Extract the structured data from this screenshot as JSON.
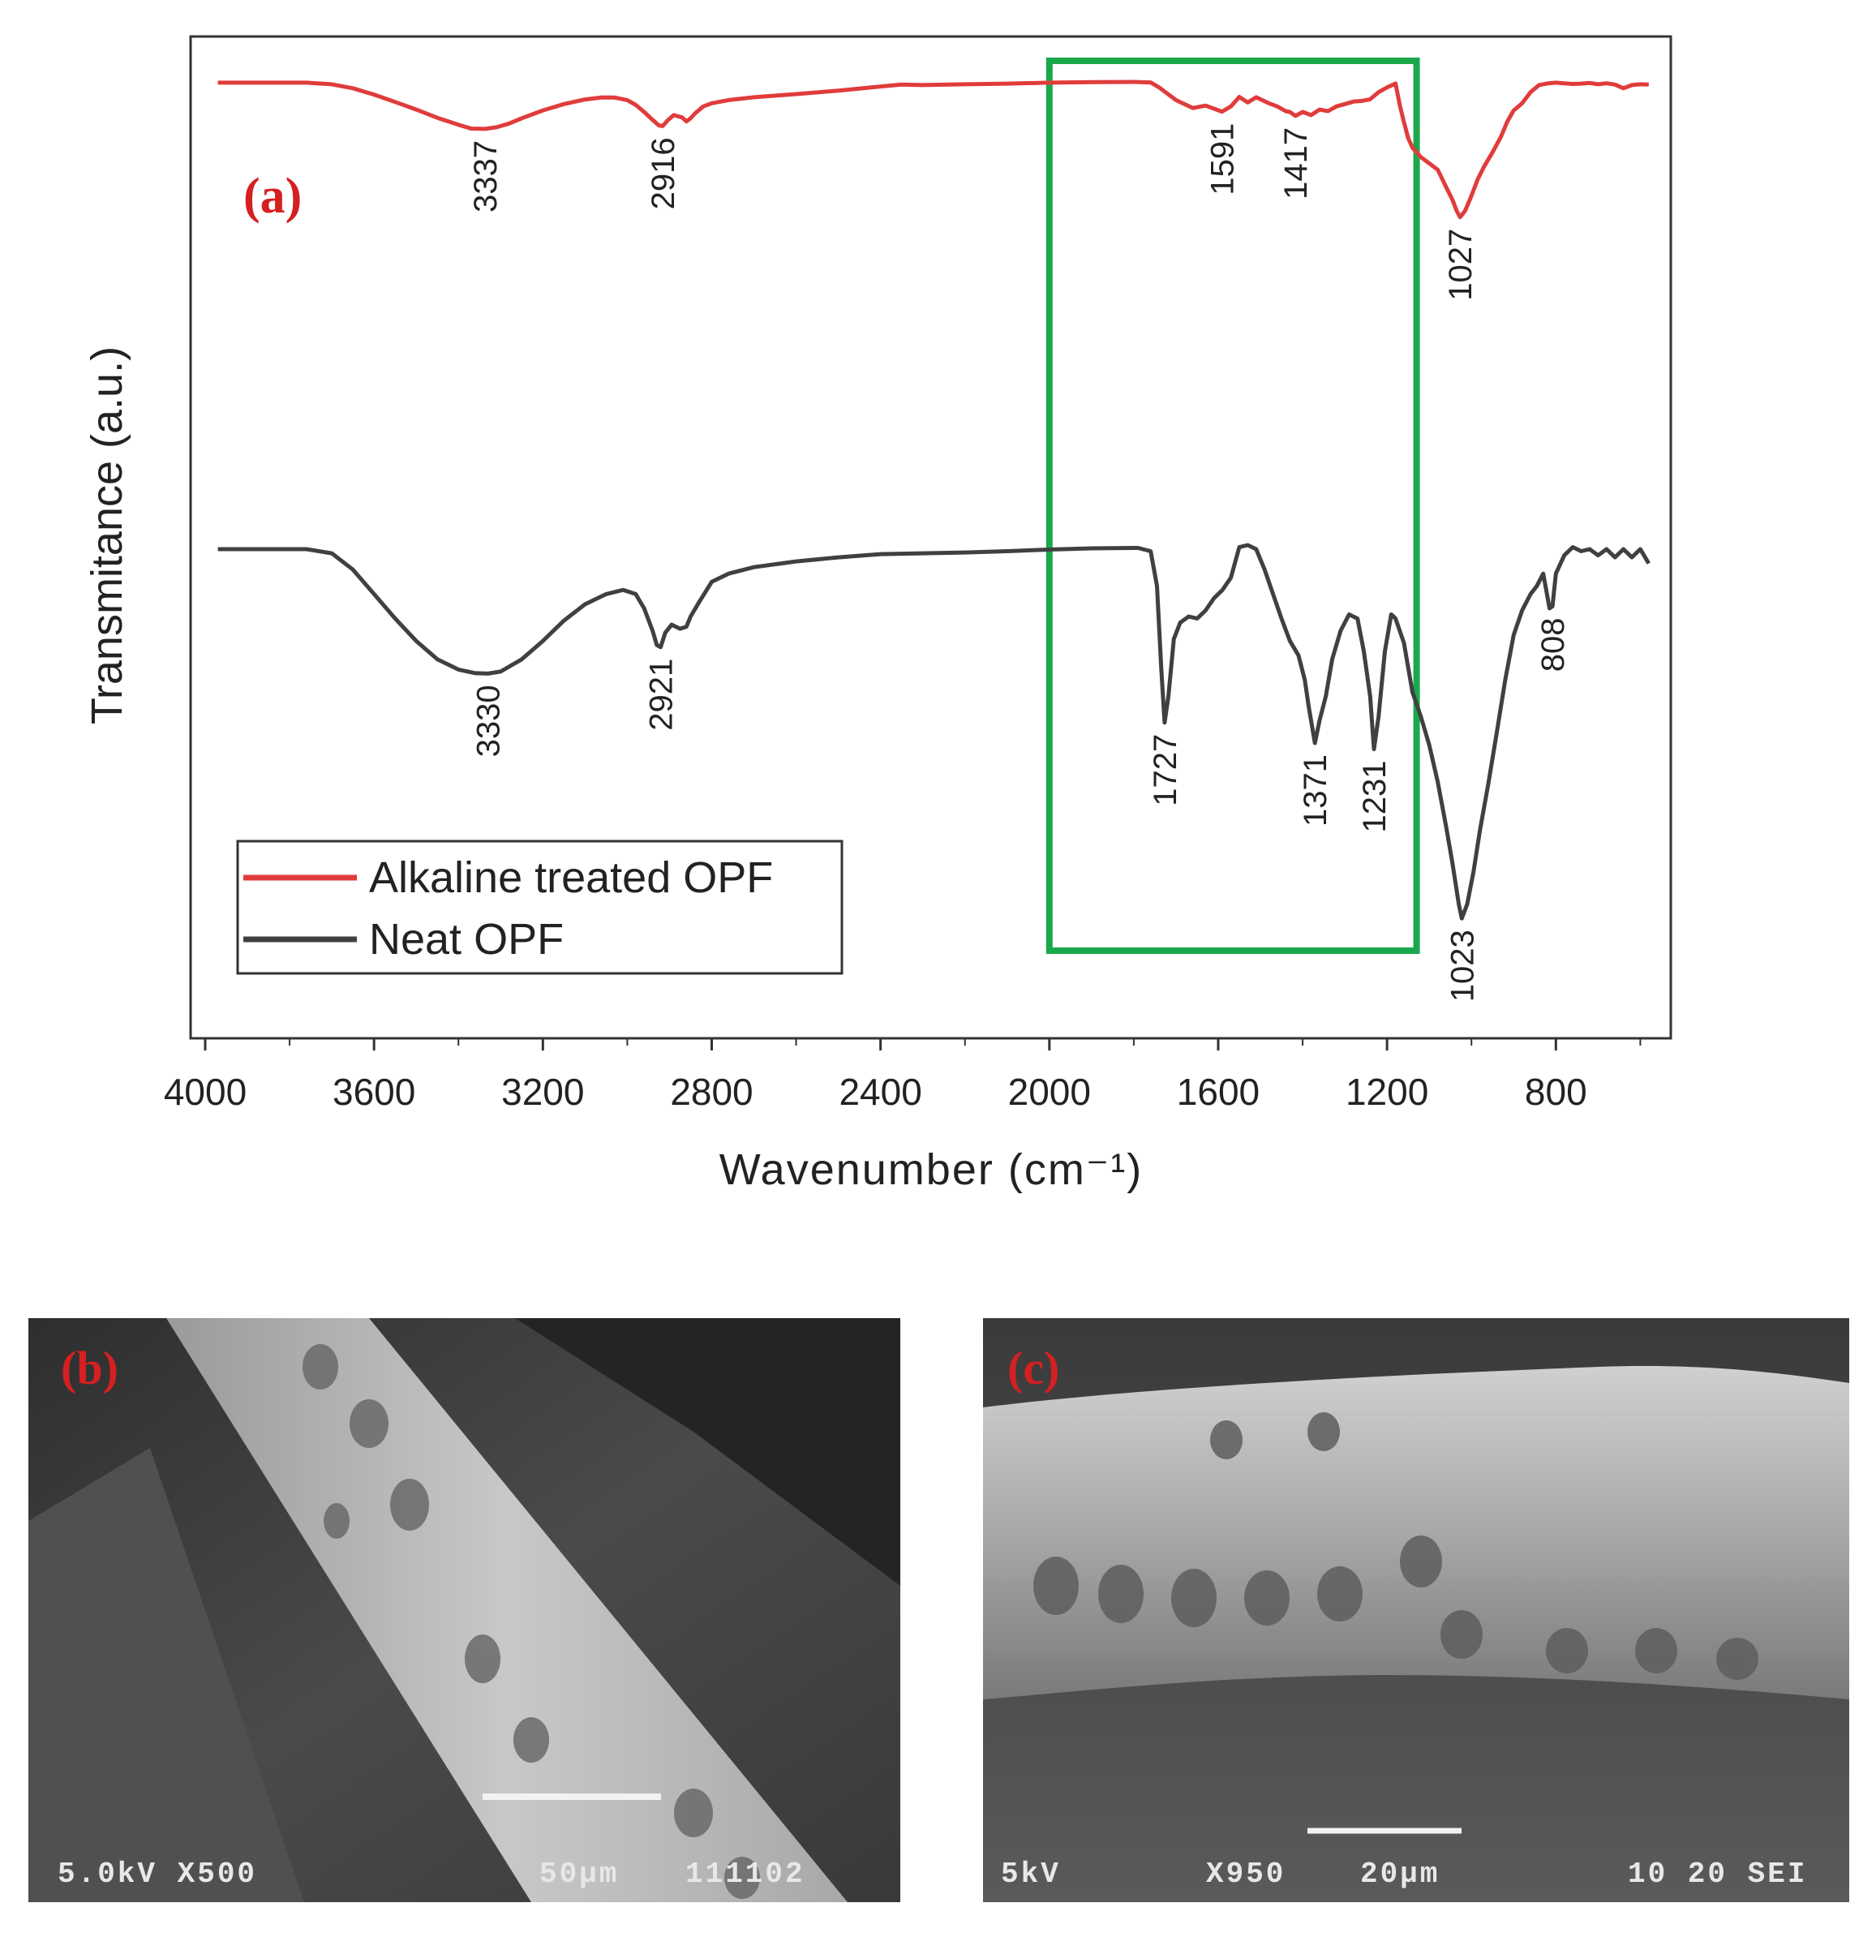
{
  "chart_data": {
    "type": "line",
    "panel_label": "(a)",
    "xlabel": "Wavenumber (cm⁻¹)",
    "ylabel": "Transmitance (a.u.)",
    "xlim": [
      4000,
      570
    ],
    "x_ticks": [
      4000,
      3600,
      3200,
      2800,
      2400,
      2000,
      1600,
      1200,
      800
    ],
    "x_tick_labels": [
      "4000",
      "3600",
      "3200",
      "2800",
      "2400",
      "2000",
      "1600",
      "1200",
      "800"
    ],
    "legend": {
      "placement": "bottom-left"
    },
    "series": [
      {
        "name": "Alkaline treated OPF",
        "color": "#e03c3c",
        "x": [
          3970,
          3760,
          3700,
          3650,
          3600,
          3550,
          3500,
          3450,
          3400,
          3370,
          3337,
          3310,
          3280,
          3250,
          3200,
          3150,
          3100,
          3060,
          3030,
          3000,
          2980,
          2960,
          2940,
          2925,
          2916,
          2905,
          2890,
          2870,
          2860,
          2850,
          2840,
          2820,
          2800,
          2760,
          2700,
          2600,
          2500,
          2400,
          2350,
          2300,
          2200,
          2100,
          2000,
          1900,
          1800,
          1760,
          1740,
          1700,
          1660,
          1630,
          1591,
          1570,
          1550,
          1530,
          1510,
          1480,
          1460,
          1440,
          1430,
          1417,
          1400,
          1380,
          1360,
          1340,
          1320,
          1300,
          1280,
          1260,
          1240,
          1220,
          1200,
          1180,
          1170,
          1160,
          1150,
          1140,
          1120,
          1100,
          1080,
          1060,
          1045,
          1035,
          1027,
          1015,
          1000,
          985,
          970,
          950,
          930,
          915,
          900,
          880,
          860,
          840,
          820,
          800,
          780,
          760,
          740,
          720,
          700,
          680,
          660,
          640,
          620,
          600,
          580
        ],
        "y": [
          99.0,
          99.0,
          98.0,
          95.5,
          91.5,
          86.8,
          82.0,
          76.8,
          72.4,
          70.0,
          69.8,
          70.8,
          73.2,
          76.5,
          81.5,
          85.5,
          88.4,
          89.7,
          89.6,
          88.0,
          85.0,
          80.5,
          75.5,
          72.0,
          71.6,
          75.0,
          78.5,
          77.0,
          74.5,
          76.5,
          79.5,
          84.0,
          86.0,
          88.0,
          89.8,
          91.8,
          94.0,
          96.6,
          97.8,
          97.5,
          98.0,
          98.4,
          99.0,
          99.4,
          99.5,
          99.2,
          96.0,
          88.0,
          83.0,
          84.5,
          80.7,
          84.0,
          90.0,
          86.5,
          89.8,
          86.0,
          84.0,
          81.0,
          80.5,
          78.0,
          80.5,
          78.5,
          82.0,
          81.0,
          84.0,
          85.5,
          87.0,
          87.5,
          88.5,
          93.0,
          96.0,
          98.5,
          85.0,
          74.0,
          64.0,
          58.0,
          52.0,
          48.0,
          44.0,
          33.0,
          25.0,
          18.0,
          14.0,
          18.0,
          27.5,
          38.0,
          46.0,
          55.0,
          65.0,
          74.5,
          81.5,
          86.0,
          93.0,
          97.5,
          98.5,
          99.0,
          98.6,
          98.2,
          98.4,
          98.8,
          98.0,
          98.6,
          97.8,
          95.5,
          97.5,
          98.0,
          97.8
        ]
      },
      {
        "name": "Neat OPF",
        "color": "#404040",
        "x": [
          3970,
          3760,
          3700,
          3650,
          3600,
          3550,
          3500,
          3450,
          3400,
          3360,
          3330,
          3300,
          3250,
          3200,
          3150,
          3100,
          3050,
          3010,
          2980,
          2960,
          2940,
          2930,
          2921,
          2910,
          2895,
          2875,
          2860,
          2850,
          2830,
          2800,
          2760,
          2700,
          2600,
          2500,
          2400,
          2300,
          2200,
          2100,
          2000,
          1900,
          1790,
          1760,
          1745,
          1735,
          1727,
          1718,
          1705,
          1690,
          1670,
          1650,
          1630,
          1610,
          1590,
          1570,
          1550,
          1530,
          1510,
          1490,
          1470,
          1450,
          1430,
          1410,
          1395,
          1385,
          1371,
          1360,
          1345,
          1330,
          1310,
          1290,
          1270,
          1255,
          1240,
          1231,
          1220,
          1205,
          1190,
          1180,
          1170,
          1160,
          1140,
          1120,
          1100,
          1080,
          1060,
          1045,
          1030,
          1023,
          1010,
          995,
          980,
          960,
          940,
          920,
          900,
          880,
          860,
          845,
          830,
          815,
          808,
          800,
          780,
          760,
          740,
          720,
          700,
          680,
          660,
          640,
          620,
          600,
          580
        ],
        "y": [
          99.0,
          99.0,
          98.0,
          94.0,
          88.0,
          82.0,
          76.5,
          72.0,
          69.5,
          68.6,
          68.5,
          69.0,
          72.0,
          76.5,
          81.5,
          85.5,
          88.0,
          89.0,
          88.0,
          84.5,
          79.0,
          75.5,
          75.0,
          78.5,
          80.5,
          79.5,
          80.0,
          82.5,
          86.0,
          91.0,
          93.0,
          94.6,
          96.0,
          97.0,
          97.8,
          98.0,
          98.2,
          98.5,
          98.9,
          99.2,
          99.3,
          98.5,
          90.0,
          70.0,
          56.5,
          63.0,
          77.0,
          81.0,
          82.5,
          82.0,
          84.0,
          87.0,
          89.0,
          92.0,
          99.5,
          100.0,
          99.0,
          94.0,
          88.0,
          82.0,
          76.5,
          73.0,
          67.0,
          60.0,
          51.5,
          57.0,
          63.0,
          72.0,
          79.0,
          83.0,
          82.0,
          74.0,
          63.0,
          50.0,
          58.0,
          74.0,
          83.0,
          82.0,
          79.0,
          76.0,
          64.0,
          58.0,
          51.0,
          42.0,
          31.0,
          22.0,
          12.0,
          8.5,
          12.0,
          20.0,
          30.0,
          41.5,
          54.0,
          67.0,
          78.0,
          84.0,
          88.0,
          90.0,
          93.0,
          84.5,
          85.0,
          93.0,
          97.5,
          99.5,
          98.5,
          99.0,
          97.5,
          99.0,
          97.0,
          99.0,
          97.0,
          99.0,
          95.5
        ]
      }
    ],
    "annotations": [
      {
        "series": "Alkaline treated OPF",
        "label": "3337"
      },
      {
        "series": "Alkaline treated OPF",
        "label": "2916"
      },
      {
        "series": "Alkaline treated OPF",
        "label": "1591"
      },
      {
        "series": "Alkaline treated OPF",
        "label": "1417"
      },
      {
        "series": "Alkaline treated OPF",
        "label": "1027"
      },
      {
        "series": "Neat OPF",
        "label": "3330"
      },
      {
        "series": "Neat OPF",
        "label": "2921"
      },
      {
        "series": "Neat OPF",
        "label": "1727"
      },
      {
        "series": "Neat OPF",
        "label": "1371"
      },
      {
        "series": "Neat OPF",
        "label": "1231"
      },
      {
        "series": "Neat OPF",
        "label": "1023"
      },
      {
        "series": "Neat OPF",
        "label": "808"
      }
    ],
    "highlight_box": {
      "x_from": 2000,
      "x_to": 1130,
      "color": "#1aa84a"
    }
  },
  "sem_panels": [
    {
      "label": "(b)",
      "info": "5.0kV X500",
      "scale": "50µm",
      "extra": "111102"
    },
    {
      "label": "(c)",
      "info": "5kV",
      "magnification": "X950",
      "scale": "20µm",
      "extra": "10 20 SEI"
    }
  ]
}
